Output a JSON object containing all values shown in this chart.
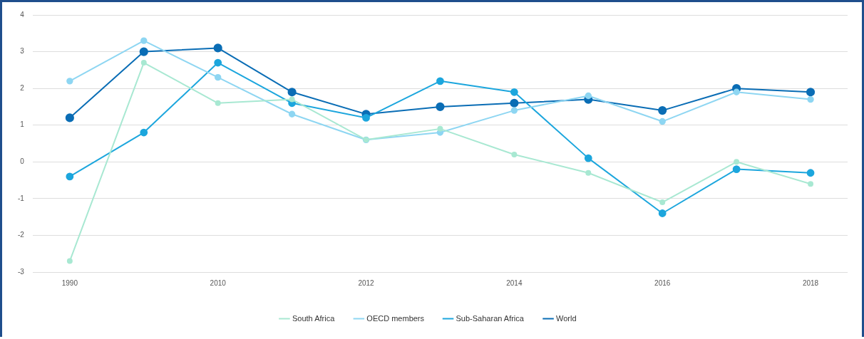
{
  "chart_data": {
    "type": "line",
    "categories": [
      "1990",
      null,
      "2010",
      null,
      "2012",
      null,
      "2014",
      null,
      "2016",
      null,
      "2018"
    ],
    "series": [
      {
        "name": "South Africa",
        "color": "#a8e8d2",
        "values": [
          -2.7,
          2.7,
          1.6,
          1.7,
          0.6,
          0.9,
          0.2,
          -0.3,
          -1.1,
          0.0,
          -0.6
        ]
      },
      {
        "name": "OECD members",
        "color": "#8ed6f2",
        "values": [
          2.2,
          3.3,
          2.3,
          1.3,
          0.6,
          0.8,
          1.4,
          1.8,
          1.1,
          1.9,
          1.7
        ]
      },
      {
        "name": "Sub-Saharan Africa",
        "color": "#1ca6dd",
        "values": [
          -0.4,
          0.8,
          2.7,
          1.6,
          1.2,
          2.2,
          1.9,
          0.1,
          -1.4,
          -0.2,
          -0.3
        ]
      },
      {
        "name": "World",
        "color": "#0a6db5",
        "values": [
          1.2,
          3.0,
          3.1,
          1.9,
          1.3,
          1.5,
          1.6,
          1.7,
          1.4,
          2.0,
          1.9
        ]
      }
    ],
    "ylim": [
      -3,
      4
    ],
    "yticks": [
      -3,
      -2,
      -1,
      0,
      1,
      2,
      3,
      4
    ],
    "grid": "y",
    "legend": "bottom",
    "marker": "circle",
    "line_style": "solid"
  }
}
